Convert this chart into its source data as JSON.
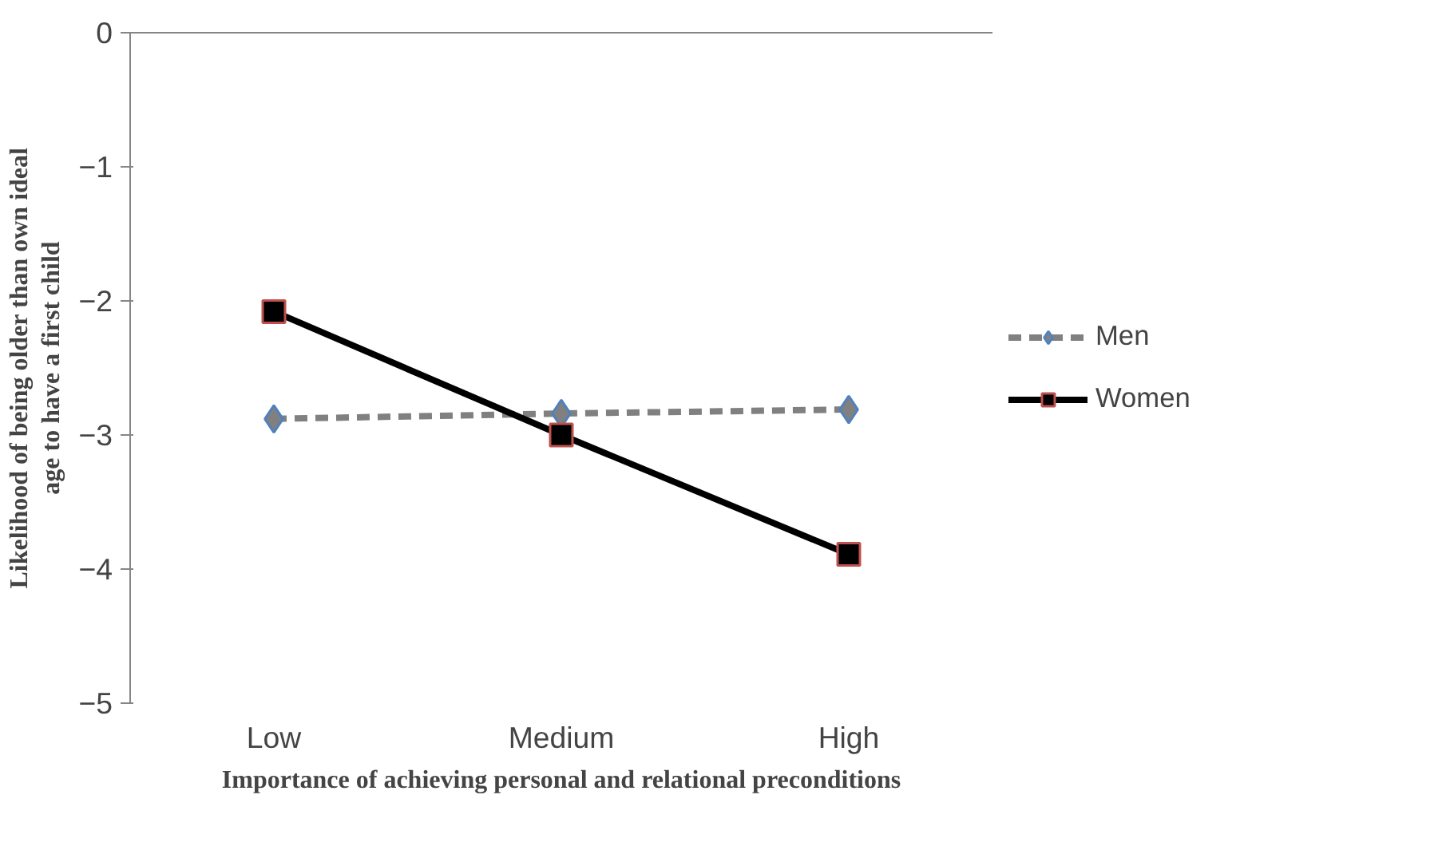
{
  "chart_data": {
    "type": "line",
    "xlabel": "Importance of achieving personal and relational preconditions",
    "ylabel": "Likelihood of being older than own ideal age to have a first child",
    "categories": [
      "Low",
      "Medium",
      "High"
    ],
    "series": [
      {
        "name": "Men",
        "color": "#808080",
        "values": [
          -2.88,
          -2.84,
          -2.81
        ],
        "marker": "diamond",
        "line_style": "dashed"
      },
      {
        "name": "Women",
        "color": "#000000",
        "values": [
          -2.08,
          -3.0,
          -3.89
        ],
        "marker": "square",
        "line_style": "solid"
      }
    ],
    "ylim": [
      -5,
      0
    ],
    "yticks": [
      0,
      -1,
      -2,
      -3,
      -4,
      -5
    ],
    "grid": false,
    "legend": "right"
  }
}
